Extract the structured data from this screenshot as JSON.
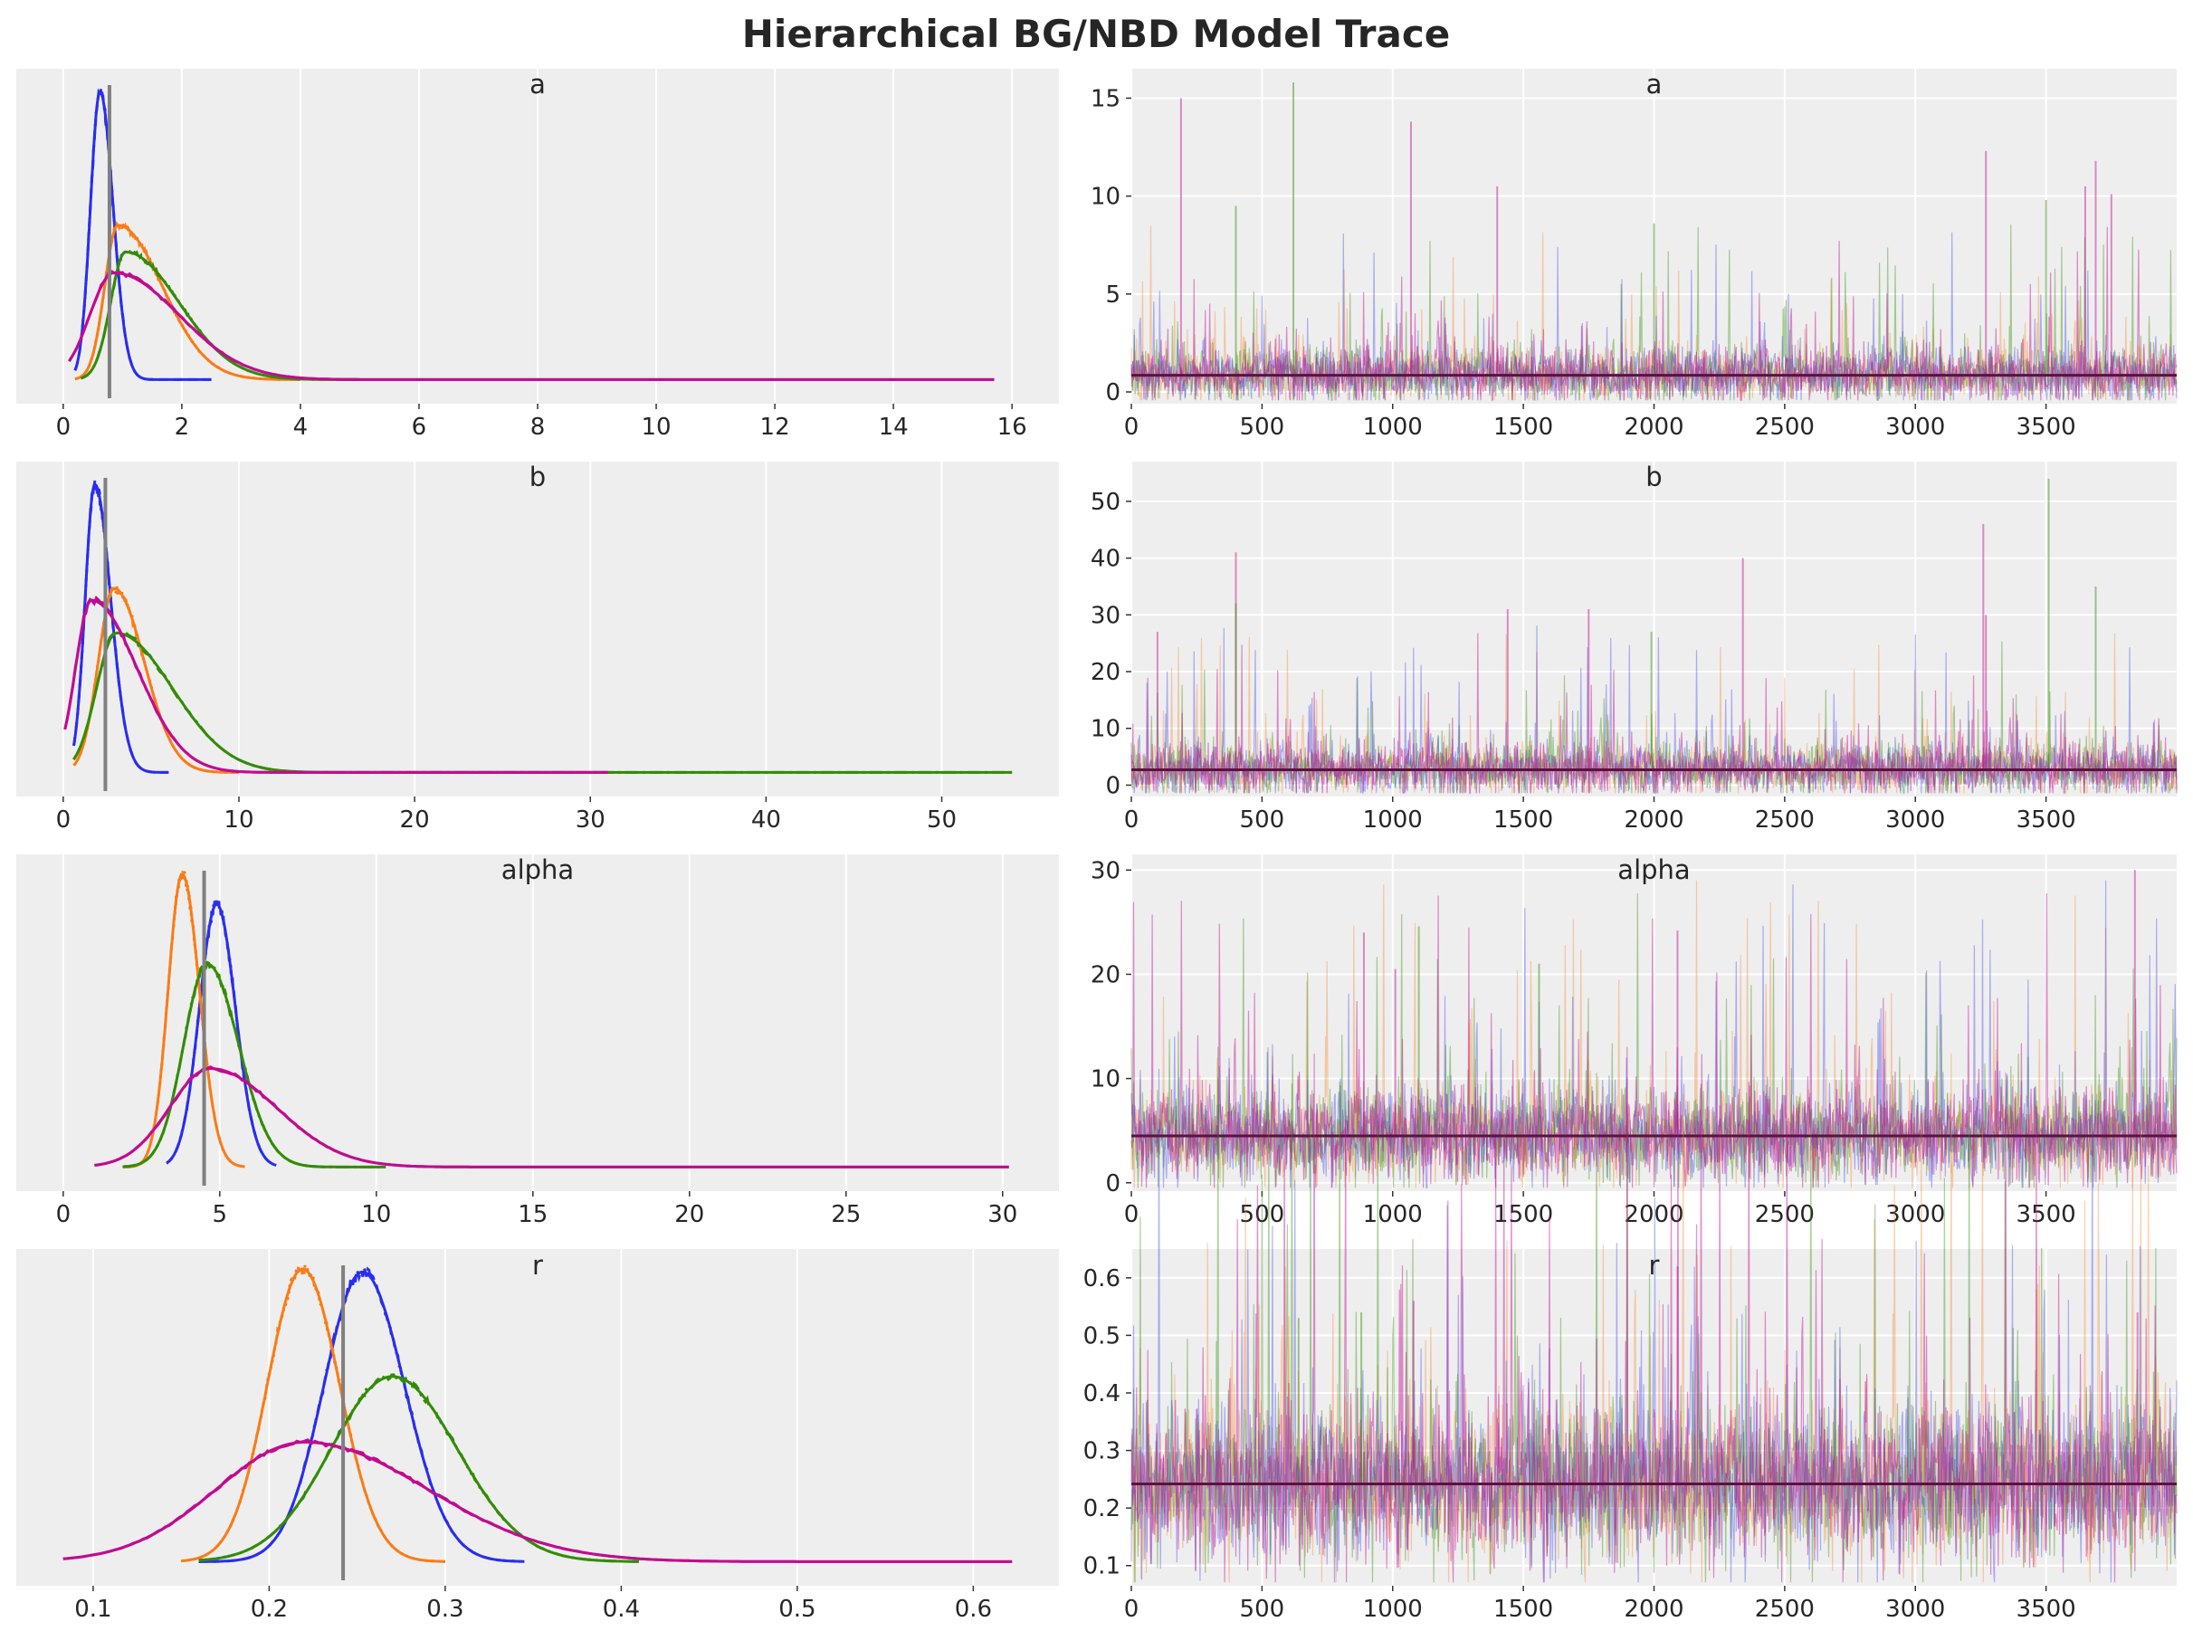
{
  "title": "Hierarchical BG/NBD Model Trace",
  "colors": {
    "panel_bg": "#eeeeee",
    "grid": "#ffffff",
    "ref_line": "#808080",
    "mean_line": "#5e1040",
    "chains": [
      "#2a2eec",
      "#fa7c17",
      "#328c06",
      "#c10c90"
    ]
  },
  "chart_data": [
    {
      "type": "line",
      "name": "a-density",
      "title": "a",
      "xlim": [
        0,
        16
      ],
      "xticks": [
        "0",
        "2",
        "4",
        "6",
        "8",
        "10",
        "12",
        "14",
        "16"
      ],
      "reference": 0.78,
      "series": [
        {
          "peak": 0.62,
          "sd_left": 0.16,
          "sd_right": 0.22,
          "height": 0.97,
          "min": 0.2,
          "max": 2.5
        },
        {
          "peak": 0.92,
          "sd_left": 0.22,
          "sd_right": 0.75,
          "height": 0.52,
          "min": 0.2,
          "max": 4.0
        },
        {
          "peak": 1.05,
          "sd_left": 0.25,
          "sd_right": 0.9,
          "height": 0.43,
          "min": 0.3,
          "max": 5.0
        },
        {
          "peak": 0.85,
          "sd_left": 0.4,
          "sd_right": 1.1,
          "height": 0.36,
          "min": 0.1,
          "max": 15.7
        }
      ]
    },
    {
      "type": "line",
      "name": "a-trace",
      "title": "a",
      "xlim": [
        0,
        4000
      ],
      "xticks": [
        "0",
        "500",
        "1000",
        "1500",
        "2000",
        "2500",
        "3000",
        "3500"
      ],
      "ylim": [
        -0.6,
        16.5
      ],
      "yticks": [
        "0",
        "5",
        "10",
        "15"
      ],
      "mean": 0.85,
      "spikes": [
        [
          190,
          15.0
        ],
        [
          620,
          15.8
        ],
        [
          1070,
          13.8
        ],
        [
          1400,
          10.5
        ],
        [
          400,
          9.5
        ],
        [
          3270,
          12.3
        ],
        [
          3690,
          11.8
        ],
        [
          3500,
          9.8
        ],
        [
          3650,
          10.5
        ],
        [
          3750,
          10.1
        ],
        [
          2000,
          8.6
        ]
      ]
    },
    {
      "type": "line",
      "name": "b-density",
      "title": "b",
      "xlim": [
        0,
        54
      ],
      "xticks": [
        "0",
        "10",
        "20",
        "30",
        "40",
        "50"
      ],
      "reference": 2.4,
      "series": [
        {
          "peak": 1.8,
          "sd_left": 0.55,
          "sd_right": 0.9,
          "height": 0.97,
          "min": 0.6,
          "max": 6.0
        },
        {
          "peak": 2.9,
          "sd_left": 0.9,
          "sd_right": 1.7,
          "height": 0.62,
          "min": 0.6,
          "max": 10.0
        },
        {
          "peak": 3.0,
          "sd_left": 1.1,
          "sd_right": 3.2,
          "height": 0.47,
          "min": 0.6,
          "max": 54.0
        },
        {
          "peak": 1.6,
          "sd_left": 0.9,
          "sd_right": 2.6,
          "height": 0.58,
          "min": 0.1,
          "max": 31.0
        }
      ]
    },
    {
      "type": "line",
      "name": "b-trace",
      "title": "b",
      "xlim": [
        0,
        4000
      ],
      "xticks": [
        "0",
        "500",
        "1000",
        "1500",
        "2000",
        "2500",
        "3000",
        "3500"
      ],
      "ylim": [
        -2,
        57
      ],
      "yticks": [
        "0",
        "10",
        "20",
        "30",
        "40",
        "50"
      ],
      "mean": 2.7,
      "spikes": [
        [
          400,
          41.0
        ],
        [
          3510,
          54.0
        ],
        [
          3260,
          46.0
        ],
        [
          2340,
          40.0
        ],
        [
          3690,
          35.0
        ],
        [
          1440,
          31.0
        ],
        [
          1750,
          31.0
        ],
        [
          400,
          32.0
        ],
        [
          3270,
          30.0
        ],
        [
          100,
          27.0
        ],
        [
          1990,
          27.0
        ]
      ]
    },
    {
      "type": "line",
      "name": "alpha-density",
      "title": "alpha",
      "xlim": [
        0,
        30.3
      ],
      "xticks": [
        "0",
        "5",
        "10",
        "15",
        "20",
        "25",
        "30"
      ],
      "reference": 4.5,
      "series": [
        {
          "peak": 4.9,
          "sd_left": 0.55,
          "sd_right": 0.6,
          "height": 0.88,
          "min": 3.3,
          "max": 6.8
        },
        {
          "peak": 3.8,
          "sd_left": 0.45,
          "sd_right": 0.55,
          "height": 0.98,
          "min": 1.9,
          "max": 5.8
        },
        {
          "peak": 4.6,
          "sd_left": 0.75,
          "sd_right": 1.0,
          "height": 0.68,
          "min": 1.9,
          "max": 10.3
        },
        {
          "peak": 4.7,
          "sd_left": 1.3,
          "sd_right": 2.1,
          "height": 0.33,
          "min": 1.0,
          "max": 30.2
        }
      ]
    },
    {
      "type": "line",
      "name": "alpha-trace",
      "title": "alpha",
      "xlim": [
        0,
        4000
      ],
      "xticks": [
        "0",
        "500",
        "1000",
        "1500",
        "2000",
        "2500",
        "3000",
        "3500"
      ],
      "ylim": [
        -0.8,
        31.5
      ],
      "yticks": [
        "0",
        "10",
        "20",
        "30"
      ],
      "mean": 4.5,
      "spikes": [
        [
          3840,
          30.0
        ],
        [
          1100,
          24.6
        ],
        [
          2090,
          24.2
        ],
        [
          890,
          24.0
        ],
        [
          1560,
          21.0
        ],
        [
          1010,
          20.5
        ]
      ]
    },
    {
      "type": "line",
      "name": "r-density",
      "title": "r",
      "xlim": [
        0.083,
        0.622
      ],
      "xticks": [
        "0.1",
        "0.2",
        "0.3",
        "0.4",
        "0.5",
        "0.6"
      ],
      "reference": 0.242,
      "series": [
        {
          "peak": 0.253,
          "sd_left": 0.022,
          "sd_right": 0.024,
          "height": 0.97,
          "min": 0.16,
          "max": 0.345
        },
        {
          "peak": 0.219,
          "sd_left": 0.02,
          "sd_right": 0.021,
          "height": 0.98,
          "min": 0.15,
          "max": 0.3
        },
        {
          "peak": 0.27,
          "sd_left": 0.035,
          "sd_right": 0.037,
          "height": 0.62,
          "min": 0.16,
          "max": 0.41
        },
        {
          "peak": 0.22,
          "sd_left": 0.05,
          "sd_right": 0.07,
          "height": 0.4,
          "min": 0.083,
          "max": 0.622
        }
      ]
    },
    {
      "type": "line",
      "name": "r-trace",
      "title": "r",
      "xlim": [
        0,
        4000
      ],
      "xticks": [
        "0",
        "500",
        "1000",
        "1500",
        "2000",
        "2500",
        "3000",
        "3500"
      ],
      "ylim": [
        0.065,
        0.65
      ],
      "yticks": [
        "0.1",
        "0.2",
        "0.3",
        "0.4",
        "0.5",
        "0.6"
      ],
      "mean": 0.242,
      "spikes": [
        [
          2090,
          0.62
        ],
        [
          880,
          0.54
        ],
        [
          3850,
          0.54
        ],
        [
          1080,
          0.56
        ],
        [
          640,
          0.53
        ]
      ]
    }
  ]
}
